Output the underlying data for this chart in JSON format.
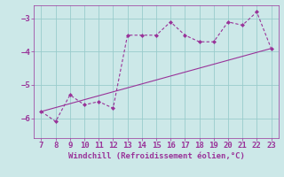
{
  "x": [
    7,
    8,
    9,
    10,
    11,
    12,
    13,
    14,
    15,
    16,
    17,
    18,
    19,
    20,
    21,
    22,
    23
  ],
  "y": [
    -5.8,
    -6.1,
    -5.3,
    -5.6,
    -5.5,
    -5.7,
    -3.5,
    -3.5,
    -3.5,
    -3.1,
    -3.5,
    -3.7,
    -3.7,
    -3.1,
    -3.2,
    -2.8,
    -3.9
  ],
  "trend_x": [
    7,
    23
  ],
  "trend_y": [
    -5.8,
    -3.9
  ],
  "line_color": "#993399",
  "marker": "D",
  "marker_size": 2,
  "xlabel": "Windchill (Refroidissement éolien,°C)",
  "xlim": [
    6.5,
    23.5
  ],
  "ylim": [
    -6.6,
    -2.6
  ],
  "yticks": [
    -6,
    -5,
    -4,
    -3
  ],
  "xticks": [
    7,
    8,
    9,
    10,
    11,
    12,
    13,
    14,
    15,
    16,
    17,
    18,
    19,
    20,
    21,
    22,
    23
  ],
  "bg_color": "#cce8e8",
  "grid_color": "#99cccc",
  "xlabel_color": "#993399",
  "tick_color": "#993399",
  "font_size": 6.5
}
